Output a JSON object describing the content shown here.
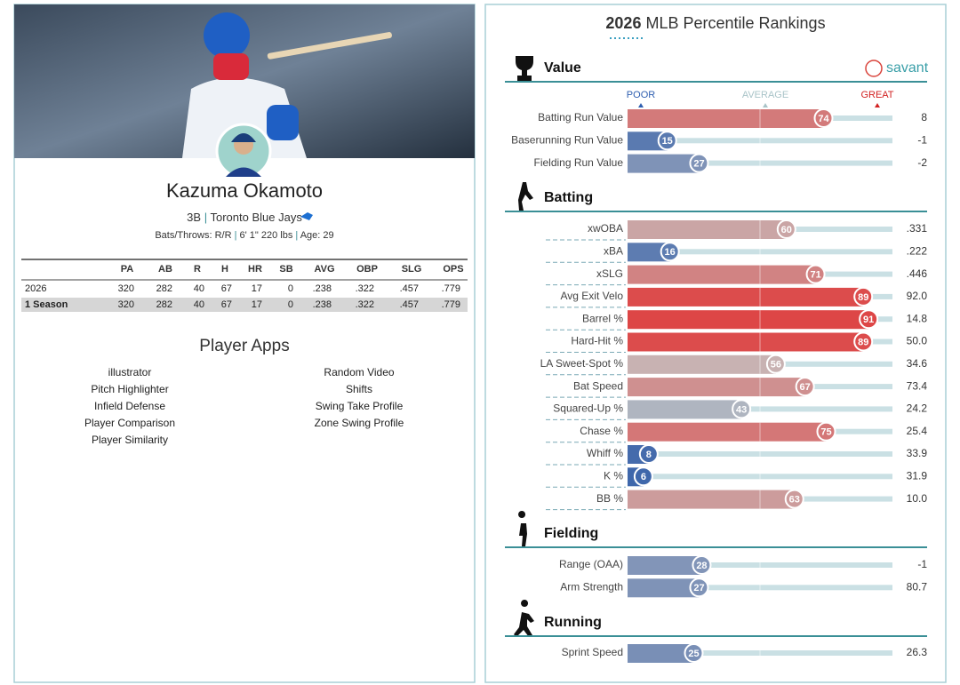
{
  "player": {
    "name": "Kazuma Okamoto",
    "position": "3B",
    "team": "Toronto Blue Jays",
    "separator": "|",
    "bats_throws": "Bats/Throws: R/R",
    "height_weight": "6' 1\" 220 lbs",
    "age": "Age: 29"
  },
  "stats_table": {
    "columns": [
      "PA",
      "AB",
      "R",
      "H",
      "HR",
      "SB",
      "AVG",
      "OBP",
      "SLG",
      "OPS"
    ],
    "rows": [
      {
        "label": "2026",
        "values": [
          320,
          282,
          40,
          67,
          17,
          0,
          ".238",
          ".322",
          ".457",
          ".779"
        ]
      },
      {
        "label": "1 Season",
        "values": [
          320,
          282,
          40,
          67,
          17,
          0,
          ".238",
          ".322",
          ".457",
          ".779"
        ]
      }
    ]
  },
  "apps": {
    "title": "Player Apps",
    "left": [
      "illustrator",
      "Pitch Highlighter",
      "Infield Defense",
      "Player Comparison",
      "Player Similarity"
    ],
    "right": [
      "Random Video",
      "Shifts",
      "Swing Take Profile",
      "Zone Swing Profile"
    ]
  },
  "rankings": {
    "title_year": "2026",
    "title": "MLB Percentile Rankings",
    "brand": "savant",
    "scale": [
      "POOR",
      "AVERAGE",
      "GREAT"
    ],
    "sections": [
      {
        "name": "Value",
        "metrics": [
          {
            "label": "Batting Run Value",
            "percentile": 74,
            "value": "8"
          },
          {
            "label": "Baserunning Run Value",
            "percentile": 15,
            "value": "-1"
          },
          {
            "label": "Fielding Run Value",
            "percentile": 27,
            "value": "-2"
          }
        ]
      },
      {
        "name": "Batting",
        "metrics": [
          {
            "label": "xwOBA",
            "percentile": 60,
            "value": ".331"
          },
          {
            "label": "xBA",
            "percentile": 16,
            "value": ".222"
          },
          {
            "label": "xSLG",
            "percentile": 71,
            "value": ".446"
          },
          {
            "label": "Avg Exit Velo",
            "percentile": 89,
            "value": "92.0"
          },
          {
            "label": "Barrel %",
            "percentile": 91,
            "value": "14.8"
          },
          {
            "label": "Hard-Hit %",
            "percentile": 89,
            "value": "50.0"
          },
          {
            "label": "LA Sweet-Spot %",
            "percentile": 56,
            "value": "34.6"
          },
          {
            "label": "Bat Speed",
            "percentile": 67,
            "value": "73.4"
          },
          {
            "label": "Squared-Up %",
            "percentile": 43,
            "value": "24.2"
          },
          {
            "label": "Chase %",
            "percentile": 75,
            "value": "25.4"
          },
          {
            "label": "Whiff %",
            "percentile": 8,
            "value": "33.9"
          },
          {
            "label": "K %",
            "percentile": 6,
            "value": "31.9"
          },
          {
            "label": "BB %",
            "percentile": 63,
            "value": "10.0"
          }
        ]
      },
      {
        "name": "Fielding",
        "metrics": [
          {
            "label": "Range (OAA)",
            "percentile": 28,
            "value": "-1"
          },
          {
            "label": "Arm Strength",
            "percentile": 27,
            "value": "80.7"
          }
        ]
      },
      {
        "name": "Running",
        "metrics": [
          {
            "label": "Sprint Speed",
            "percentile": 25,
            "value": "26.3"
          }
        ]
      }
    ]
  }
}
